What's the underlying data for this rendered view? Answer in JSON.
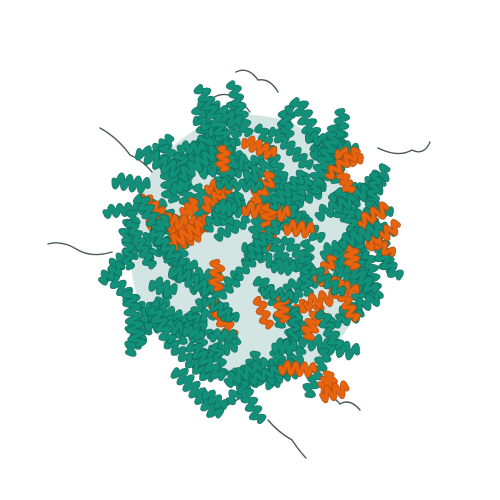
{
  "image": {
    "subject": "protein-ribbon-ensemble",
    "colors": {
      "background": "#ffffff",
      "helix_primary": "#12917a",
      "helix_primary_dark": "#0b6e5d",
      "helix_highlight": "#e8630e",
      "helix_highlight_dark": "#b84a08",
      "loop": "#4a5a5c"
    }
  }
}
